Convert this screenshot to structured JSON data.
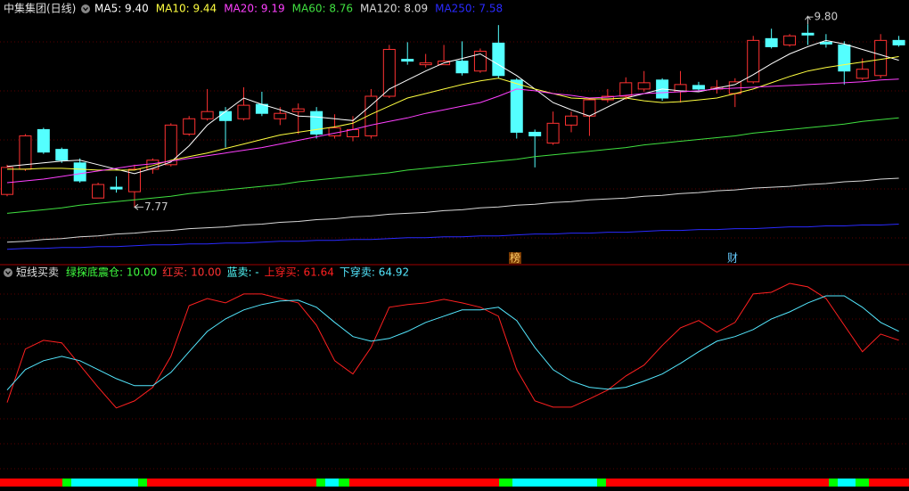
{
  "chart_data": [
    {
      "type": "candlestick",
      "title": "中集集团(日线)",
      "up_color": "#ff3232",
      "down_color": "#54ffff",
      "ylim": [
        7.13,
        9.95
      ],
      "open": [
        7.91,
        8.19,
        8.63,
        8.41,
        8.26,
        7.87,
        7.99,
        7.94,
        8.19,
        8.24,
        8.58,
        8.75,
        8.83,
        8.75,
        8.91,
        8.75,
        8.83,
        8.83,
        8.56,
        8.55,
        8.56,
        9.0,
        9.41,
        9.35,
        9.35,
        9.39,
        9.28,
        9.59,
        9.18,
        8.6,
        8.48,
        8.68,
        8.78,
        8.96,
        9.0,
        9.08,
        9.18,
        9.05,
        9.12,
        9.08,
        9.03,
        9.16,
        9.64,
        9.57,
        9.7,
        9.6,
        9.57,
        9.2,
        9.23,
        9.62
      ],
      "high": [
        8.24,
        8.58,
        8.65,
        8.43,
        8.31,
        8.04,
        8.11,
        8.24,
        8.31,
        8.7,
        8.78,
        9.08,
        8.88,
        9.1,
        9.05,
        8.88,
        8.92,
        8.88,
        8.8,
        8.78,
        9.08,
        9.57,
        9.6,
        9.47,
        9.57,
        9.61,
        9.53,
        9.79,
        9.2,
        8.63,
        8.83,
        8.83,
        8.98,
        9.08,
        9.21,
        9.28,
        9.2,
        9.28,
        9.16,
        9.18,
        9.2,
        9.67,
        9.75,
        9.69,
        9.8,
        9.69,
        9.61,
        9.42,
        9.69,
        9.67
      ],
      "low": [
        7.89,
        8.17,
        8.36,
        8.26,
        8.04,
        7.87,
        7.93,
        7.77,
        8.14,
        8.22,
        8.56,
        8.73,
        8.43,
        8.73,
        8.78,
        8.68,
        8.58,
        8.53,
        8.53,
        8.5,
        8.53,
        8.98,
        9.35,
        9.32,
        9.35,
        9.23,
        9.26,
        9.2,
        8.53,
        8.21,
        8.46,
        8.6,
        8.56,
        8.93,
        8.96,
        9.05,
        8.95,
        8.93,
        9.06,
        9.03,
        8.88,
        9.14,
        9.53,
        9.55,
        9.57,
        9.54,
        9.13,
        9.18,
        9.2,
        9.55
      ],
      "close": [
        8.21,
        8.56,
        8.38,
        8.29,
        8.06,
        8.02,
        7.97,
        8.19,
        8.29,
        8.68,
        8.75,
        8.83,
        8.73,
        8.9,
        8.81,
        8.81,
        8.86,
        8.58,
        8.65,
        8.63,
        9.0,
        9.52,
        9.39,
        9.37,
        9.39,
        9.26,
        9.5,
        9.23,
        8.6,
        8.56,
        8.7,
        8.78,
        8.96,
        9.0,
        9.15,
        9.15,
        8.98,
        9.13,
        9.08,
        9.1,
        9.16,
        9.62,
        9.55,
        9.67,
        9.68,
        9.58,
        9.28,
        9.3,
        9.62,
        9.57
      ],
      "series": [
        {
          "legend": "MA5: 9.40",
          "color": "#ffffff",
          "values": [
            8.22,
            8.24,
            8.26,
            8.28,
            8.29,
            8.24,
            8.19,
            8.14,
            8.2,
            8.27,
            8.45,
            8.68,
            8.83,
            8.98,
            8.91,
            8.85,
            8.78,
            8.77,
            8.75,
            8.73,
            8.9,
            9.08,
            9.18,
            9.28,
            9.37,
            9.42,
            9.47,
            9.35,
            9.23,
            9.08,
            8.93,
            8.85,
            8.78,
            8.88,
            8.98,
            9.03,
            9.08,
            9.06,
            9.05,
            9.09,
            9.13,
            9.24,
            9.36,
            9.47,
            9.55,
            9.62,
            9.58,
            9.52,
            9.46,
            9.4
          ]
        },
        {
          "legend": "MA10: 9.44",
          "color": "#ffff40",
          "values": [
            8.19,
            8.19,
            8.2,
            8.2,
            8.19,
            8.18,
            8.18,
            8.18,
            8.23,
            8.29,
            8.33,
            8.37,
            8.42,
            8.47,
            8.52,
            8.57,
            8.6,
            8.63,
            8.66,
            8.7,
            8.8,
            8.89,
            8.98,
            9.03,
            9.08,
            9.13,
            9.17,
            9.2,
            9.14,
            9.08,
            9.03,
            8.98,
            8.97,
            8.97,
            8.98,
            8.95,
            8.93,
            8.94,
            8.96,
            8.98,
            9.03,
            9.08,
            9.15,
            9.22,
            9.28,
            9.32,
            9.35,
            9.38,
            9.41,
            9.44
          ]
        },
        {
          "legend": "MA20: 9.19",
          "color": "#ff40ff",
          "values": [
            8.04,
            8.06,
            8.08,
            8.11,
            8.14,
            8.17,
            8.2,
            8.23,
            8.25,
            8.28,
            8.31,
            8.34,
            8.37,
            8.4,
            8.43,
            8.47,
            8.51,
            8.55,
            8.59,
            8.63,
            8.68,
            8.72,
            8.76,
            8.81,
            8.85,
            8.89,
            8.93,
            9.0,
            9.08,
            9.06,
            9.03,
            9.01,
            8.98,
            8.99,
            9.01,
            9.03,
            9.04,
            9.05,
            9.06,
            9.08,
            9.09,
            9.1,
            9.11,
            9.12,
            9.13,
            9.14,
            9.15,
            9.16,
            9.18,
            9.19
          ]
        },
        {
          "legend": "MA60: 8.76",
          "color": "#40e040",
          "values": [
            7.7,
            7.72,
            7.74,
            7.76,
            7.79,
            7.81,
            7.83,
            7.85,
            7.87,
            7.89,
            7.92,
            7.94,
            7.96,
            7.98,
            8.0,
            8.02,
            8.05,
            8.07,
            8.09,
            8.11,
            8.13,
            8.15,
            8.18,
            8.2,
            8.22,
            8.24,
            8.26,
            8.28,
            8.3,
            8.33,
            8.35,
            8.37,
            8.39,
            8.41,
            8.43,
            8.46,
            8.48,
            8.5,
            8.52,
            8.54,
            8.56,
            8.59,
            8.61,
            8.63,
            8.65,
            8.67,
            8.69,
            8.72,
            8.74,
            8.76
          ]
        },
        {
          "legend": "MA120: 8.09",
          "color": "#d8d8d8",
          "values": [
            7.38,
            7.39,
            7.41,
            7.42,
            7.44,
            7.45,
            7.47,
            7.48,
            7.5,
            7.51,
            7.53,
            7.54,
            7.55,
            7.57,
            7.58,
            7.6,
            7.61,
            7.63,
            7.64,
            7.66,
            7.67,
            7.69,
            7.7,
            7.71,
            7.73,
            7.74,
            7.76,
            7.77,
            7.79,
            7.8,
            7.82,
            7.83,
            7.85,
            7.86,
            7.87,
            7.89,
            7.9,
            7.92,
            7.93,
            7.95,
            7.96,
            7.98,
            7.99,
            8.0,
            8.02,
            8.03,
            8.05,
            8.06,
            8.08,
            8.09
          ]
        },
        {
          "legend": "MA250: 7.58",
          "color": "#2a2aff",
          "values": [
            7.3,
            7.31,
            7.31,
            7.32,
            7.32,
            7.33,
            7.33,
            7.34,
            7.35,
            7.35,
            7.36,
            7.36,
            7.37,
            7.37,
            7.38,
            7.39,
            7.39,
            7.4,
            7.4,
            7.41,
            7.41,
            7.42,
            7.43,
            7.43,
            7.44,
            7.44,
            7.45,
            7.45,
            7.46,
            7.47,
            7.47,
            7.48,
            7.48,
            7.49,
            7.49,
            7.5,
            7.51,
            7.51,
            7.52,
            7.52,
            7.53,
            7.53,
            7.54,
            7.55,
            7.55,
            7.56,
            7.56,
            7.57,
            7.57,
            7.58
          ]
        }
      ],
      "high_label": "9.80",
      "low_label": "7.77",
      "events": [
        "榜",
        "财"
      ]
    },
    {
      "type": "line",
      "title": "短线买卖",
      "indicators": [
        {
          "text": "绿探底震仓: 10.00",
          "color": "#40ff40"
        },
        {
          "text": "红买: 10.00",
          "color": "#ff3232"
        },
        {
          "text": "蓝卖: -",
          "color": "#54ffff"
        }
      ],
      "ylim": [
        13,
        88.5
      ],
      "series": [
        {
          "legend": "上穿买: 61.64",
          "color": "#ff2020",
          "values": [
            38.7,
            58.4,
            61.6,
            60.7,
            52.5,
            44.3,
            36.7,
            39.3,
            44.3,
            55.7,
            74.4,
            77.0,
            75.4,
            78.7,
            78.7,
            77.0,
            75.4,
            67.2,
            54.1,
            49.2,
            59.0,
            73.8,
            74.8,
            75.4,
            76.7,
            75.4,
            73.8,
            70.5,
            50.8,
            39.3,
            37.0,
            37.0,
            40.0,
            43.3,
            48.5,
            52.5,
            59.7,
            66.2,
            68.9,
            64.6,
            68.2,
            78.7,
            79.3,
            82.6,
            81.3,
            77.0,
            67.2,
            57.4,
            63.9,
            61.64
          ]
        },
        {
          "legend": "下穿卖: 64.92",
          "color": "#54e8ff",
          "values": [
            43.3,
            50.8,
            54.1,
            55.7,
            54.1,
            50.8,
            47.5,
            44.9,
            44.9,
            49.8,
            57.4,
            64.9,
            69.5,
            72.8,
            74.8,
            76.1,
            76.4,
            73.8,
            68.2,
            63.0,
            61.3,
            62.3,
            64.9,
            68.2,
            70.5,
            72.8,
            72.8,
            73.8,
            68.9,
            59.0,
            50.8,
            46.6,
            44.3,
            43.6,
            44.3,
            46.6,
            49.2,
            53.1,
            57.4,
            61.3,
            63.0,
            65.6,
            69.5,
            72.1,
            75.4,
            78.0,
            78.0,
            73.8,
            68.2,
            64.92
          ]
        }
      ]
    }
  ]
}
